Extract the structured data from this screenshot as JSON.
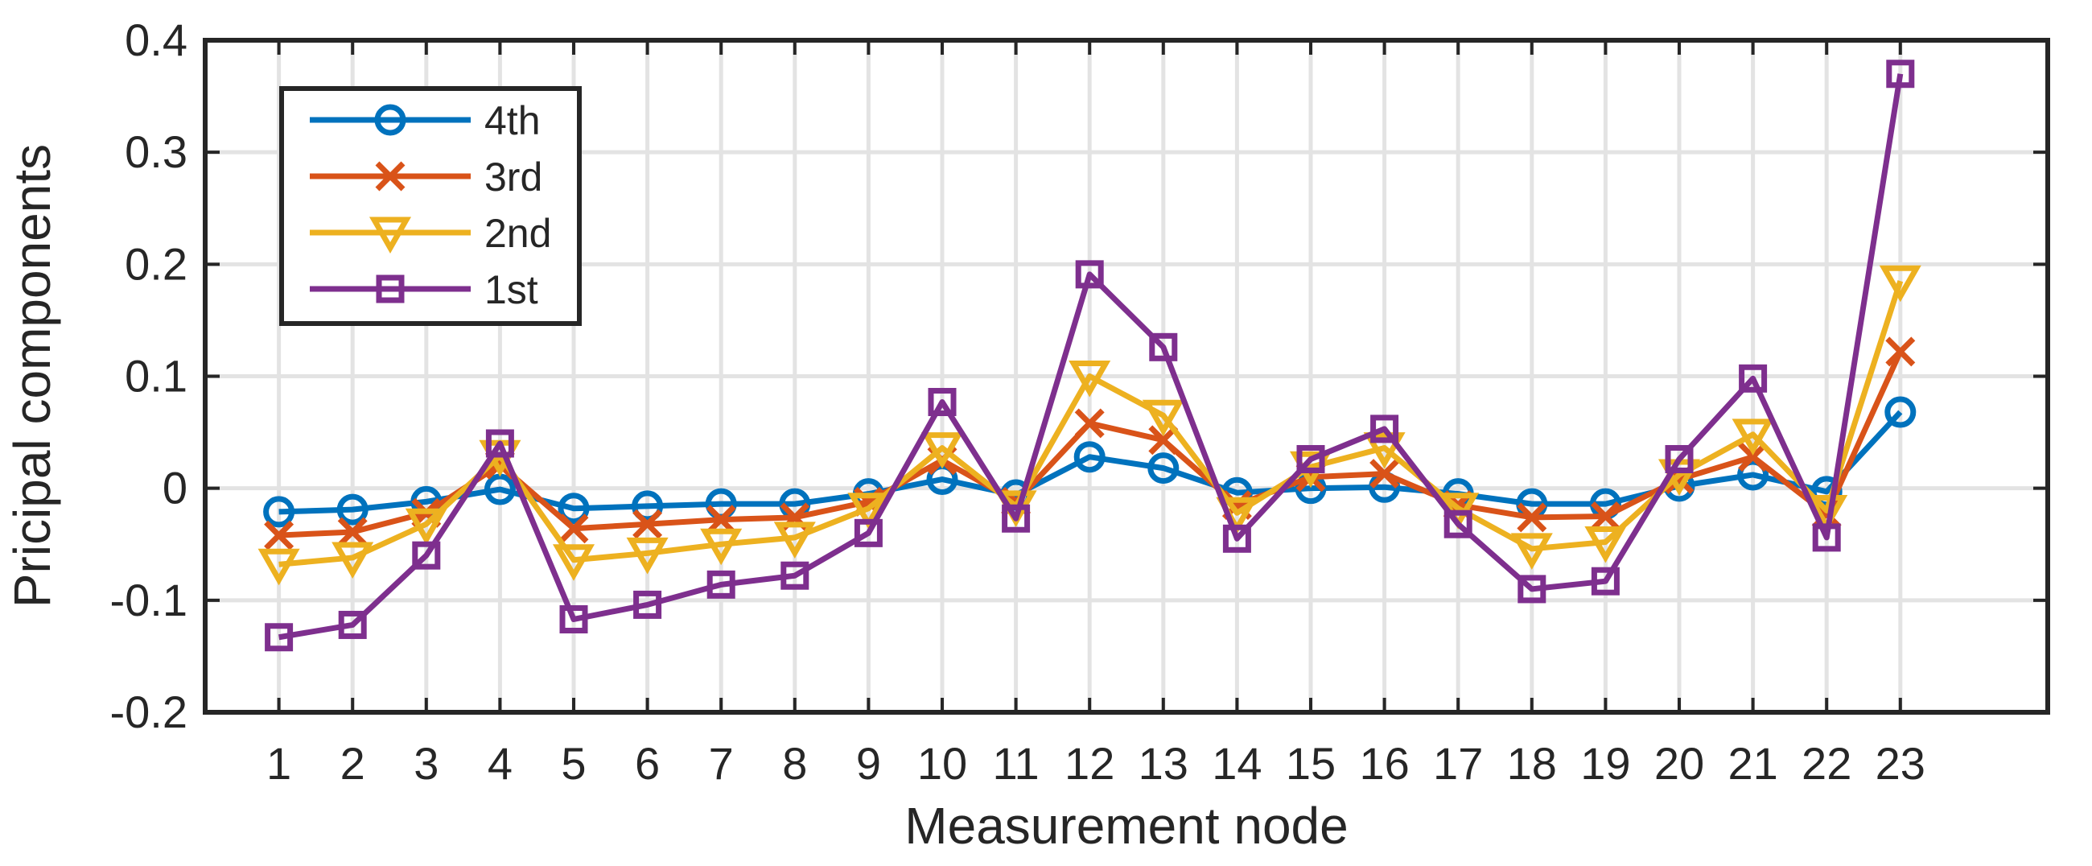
{
  "chart_data": {
    "type": "line",
    "title": "",
    "xlabel": "Measurement node",
    "ylabel": "Pricipal components",
    "x": [
      1,
      2,
      3,
      4,
      5,
      6,
      7,
      8,
      9,
      10,
      11,
      12,
      13,
      14,
      15,
      16,
      17,
      18,
      19,
      20,
      21,
      22,
      23
    ],
    "xlim": [
      0,
      25
    ],
    "ylim": [
      -0.2,
      0.4
    ],
    "yticks": [
      -0.2,
      -0.1,
      0,
      0.1,
      0.2,
      0.3,
      0.4
    ],
    "ytick_labels": [
      "-0.2",
      "-0.1",
      "0",
      "0.1",
      "0.2",
      "0.3",
      "0.4"
    ],
    "grid": true,
    "legend_position": "top-left",
    "series": [
      {
        "name": "4th",
        "color": "#0072BD",
        "marker": "circle",
        "values": [
          -0.021,
          -0.019,
          -0.012,
          -0.001,
          -0.018,
          -0.016,
          -0.014,
          -0.014,
          -0.005,
          0.008,
          -0.006,
          0.028,
          0.018,
          -0.004,
          0.0,
          0.001,
          -0.005,
          -0.014,
          -0.014,
          0.002,
          0.012,
          -0.003,
          0.068
        ]
      },
      {
        "name": "3rd",
        "color": "#D95319",
        "marker": "x",
        "values": [
          -0.042,
          -0.039,
          -0.022,
          0.021,
          -0.036,
          -0.032,
          -0.028,
          -0.026,
          -0.012,
          0.025,
          -0.012,
          0.058,
          0.043,
          -0.015,
          0.01,
          0.013,
          -0.015,
          -0.026,
          -0.025,
          0.008,
          0.028,
          -0.023,
          0.122
        ]
      },
      {
        "name": "2nd",
        "color": "#EDB120",
        "marker": "triangle-down",
        "values": [
          -0.068,
          -0.062,
          -0.032,
          0.029,
          -0.064,
          -0.058,
          -0.05,
          -0.044,
          -0.018,
          0.036,
          -0.016,
          0.1,
          0.065,
          -0.022,
          0.019,
          0.036,
          -0.018,
          -0.054,
          -0.048,
          0.012,
          0.048,
          -0.02,
          0.185
        ]
      },
      {
        "name": "1st",
        "color": "#7E2F8E",
        "marker": "square",
        "values": [
          -0.133,
          -0.122,
          -0.06,
          0.04,
          -0.117,
          -0.104,
          -0.086,
          -0.078,
          -0.04,
          0.077,
          -0.027,
          0.191,
          0.126,
          -0.045,
          0.026,
          0.053,
          -0.032,
          -0.09,
          -0.083,
          0.026,
          0.098,
          -0.044,
          0.37
        ]
      }
    ]
  }
}
